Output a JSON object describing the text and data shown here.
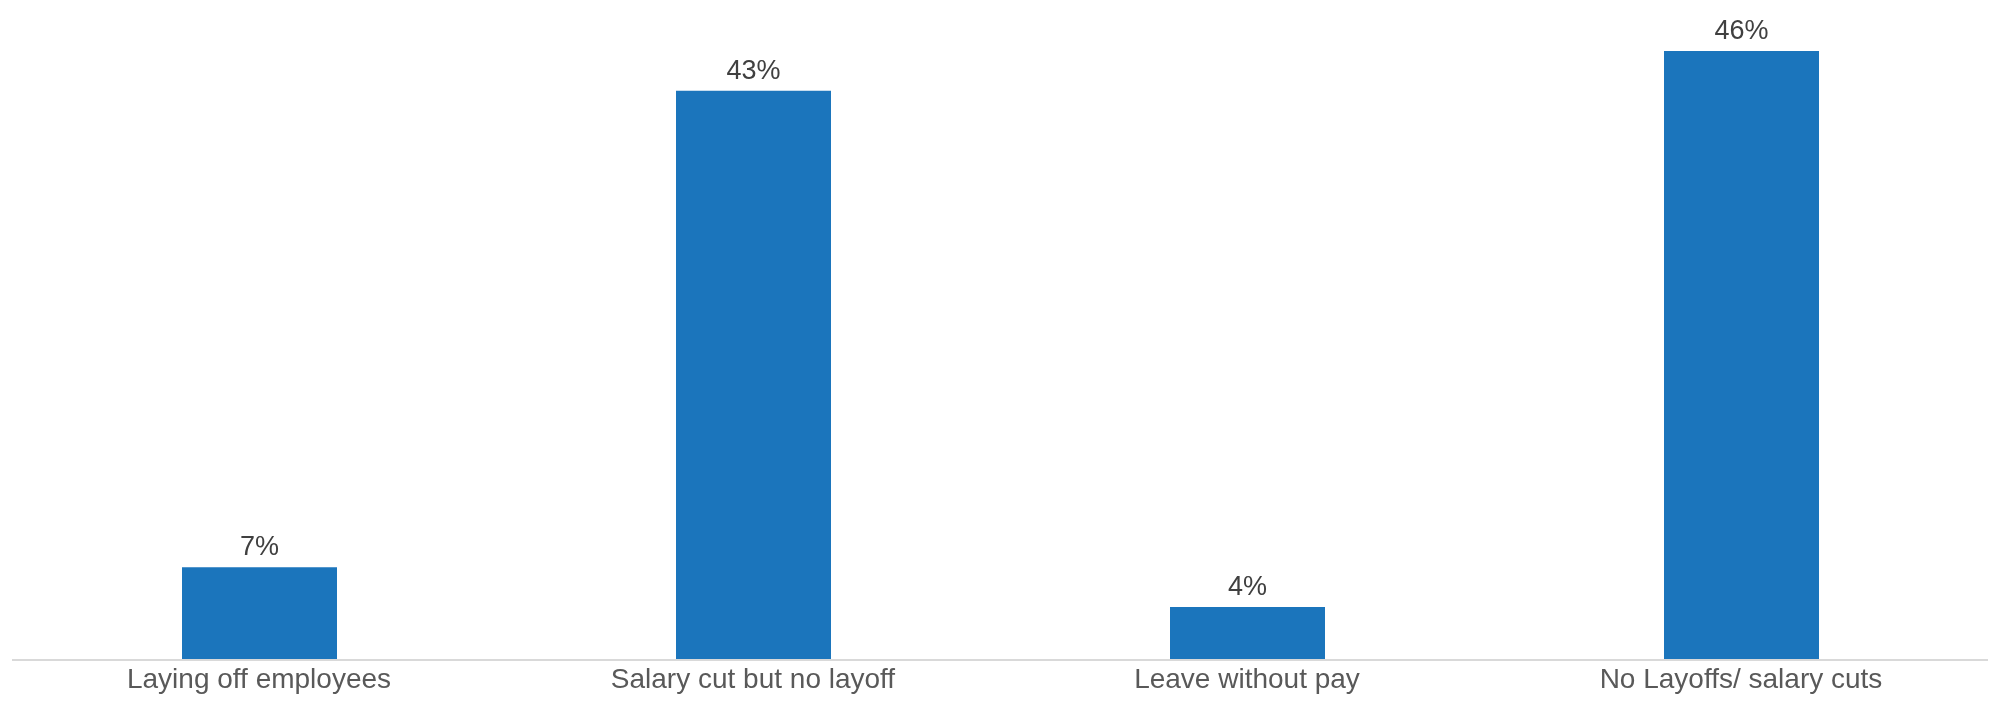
{
  "chart_data": {
    "type": "bar",
    "categories": [
      "Laying off employees",
      "Salary cut but no layoff",
      "Leave without pay",
      "No Layoffs/ salary cuts"
    ],
    "values": [
      7,
      43,
      4,
      46
    ],
    "value_labels": [
      "7%",
      "43%",
      "4%",
      "46%"
    ],
    "color": "#1b75bc",
    "grid": false,
    "legend": false
  }
}
